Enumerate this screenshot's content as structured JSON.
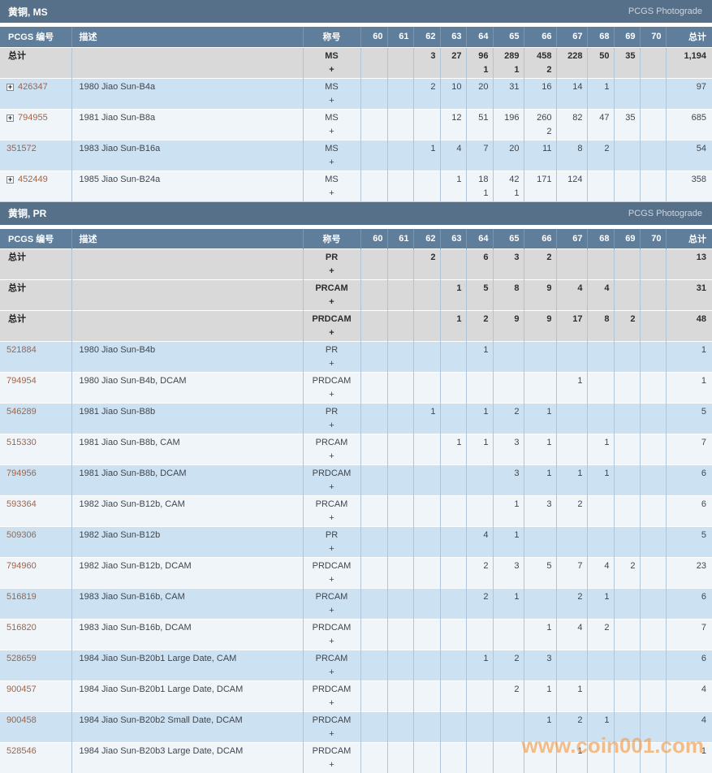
{
  "theme": {
    "section_header_bg": "#567089",
    "table_header_bg": "#5f7e9b",
    "row_blue_bg": "#cce1f2",
    "row_light_bg": "#f0f5f9",
    "row_total_bg": "#d9d9d9",
    "grid_line": "#b0c6d8",
    "link_color": "#a9613f",
    "text_color": "#40464c",
    "header_text": "#ffffff",
    "watermark_color": "rgba(244,154,66,0.62)"
  },
  "table_columns": {
    "pcgs_number": "PCGS 编号",
    "description": "描述",
    "designation": "称号",
    "grades": [
      "60",
      "61",
      "62",
      "63",
      "64",
      "65",
      "66",
      "67",
      "68",
      "69",
      "70"
    ],
    "total": "总计"
  },
  "plus_label": "+",
  "watermark": {
    "text": "www.coin001.com"
  },
  "sections": [
    {
      "title": "黄铜, MS",
      "photograde_label": "PCGS Photograde",
      "rows": [
        {
          "label": "总计",
          "is_total": true,
          "expand": false,
          "description": "",
          "designation": "MS",
          "counts": [
            "",
            "",
            "3",
            "27",
            "96",
            "289",
            "458",
            "228",
            "50",
            "35",
            ""
          ],
          "plus_counts": [
            "",
            "",
            "",
            "",
            "1",
            "1",
            "2",
            "",
            "",
            "",
            ""
          ],
          "total": "1,194",
          "plus_total": ""
        },
        {
          "label": "426347",
          "is_total": false,
          "expand": true,
          "description": "1980 Jiao Sun-B4a",
          "designation": "MS",
          "counts": [
            "",
            "",
            "2",
            "10",
            "20",
            "31",
            "16",
            "14",
            "1",
            "",
            ""
          ],
          "plus_counts": [
            "",
            "",
            "",
            "",
            "",
            "",
            "",
            "",
            "",
            "",
            ""
          ],
          "total": "97",
          "plus_total": ""
        },
        {
          "label": "794955",
          "is_total": false,
          "expand": true,
          "description": "1981 Jiao Sun-B8a",
          "designation": "MS",
          "counts": [
            "",
            "",
            "",
            "12",
            "51",
            "196",
            "260",
            "82",
            "47",
            "35",
            ""
          ],
          "plus_counts": [
            "",
            "",
            "",
            "",
            "",
            "",
            "2",
            "",
            "",
            "",
            ""
          ],
          "total": "685",
          "plus_total": ""
        },
        {
          "label": "351572",
          "is_total": false,
          "expand": false,
          "description": "1983 Jiao Sun-B16a",
          "designation": "MS",
          "counts": [
            "",
            "",
            "1",
            "4",
            "7",
            "20",
            "11",
            "8",
            "2",
            "",
            ""
          ],
          "plus_counts": [
            "",
            "",
            "",
            "",
            "",
            "",
            "",
            "",
            "",
            "",
            ""
          ],
          "total": "54",
          "plus_total": ""
        },
        {
          "label": "452449",
          "is_total": false,
          "expand": true,
          "description": "1985 Jiao Sun-B24a",
          "designation": "MS",
          "counts": [
            "",
            "",
            "",
            "1",
            "18",
            "42",
            "171",
            "124",
            "",
            "",
            ""
          ],
          "plus_counts": [
            "",
            "",
            "",
            "",
            "1",
            "1",
            "",
            "",
            "",
            "",
            ""
          ],
          "total": "358",
          "plus_total": ""
        }
      ]
    },
    {
      "title": "黄铜, PR",
      "photograde_label": "PCGS Photograde",
      "rows": [
        {
          "label": "总计",
          "is_total": true,
          "expand": false,
          "description": "",
          "designation": "PR",
          "counts": [
            "",
            "",
            "2",
            "",
            "6",
            "3",
            "2",
            "",
            "",
            "",
            ""
          ],
          "plus_counts": [
            "",
            "",
            "",
            "",
            "",
            "",
            "",
            "",
            "",
            "",
            ""
          ],
          "total": "13",
          "plus_total": ""
        },
        {
          "label": "总计",
          "is_total": true,
          "expand": false,
          "description": "",
          "designation": "PRCAM",
          "counts": [
            "",
            "",
            "",
            "1",
            "5",
            "8",
            "9",
            "4",
            "4",
            "",
            ""
          ],
          "plus_counts": [
            "",
            "",
            "",
            "",
            "",
            "",
            "",
            "",
            "",
            "",
            ""
          ],
          "total": "31",
          "plus_total": ""
        },
        {
          "label": "总计",
          "is_total": true,
          "expand": false,
          "description": "",
          "designation": "PRDCAM",
          "counts": [
            "",
            "",
            "",
            "1",
            "2",
            "9",
            "9",
            "17",
            "8",
            "2",
            ""
          ],
          "plus_counts": [
            "",
            "",
            "",
            "",
            "",
            "",
            "",
            "",
            "",
            "",
            ""
          ],
          "total": "48",
          "plus_total": ""
        },
        {
          "label": "521884",
          "is_total": false,
          "expand": false,
          "description": "1980 Jiao Sun-B4b",
          "designation": "PR",
          "counts": [
            "",
            "",
            "",
            "",
            "1",
            "",
            "",
            "",
            "",
            "",
            ""
          ],
          "plus_counts": [
            "",
            "",
            "",
            "",
            "",
            "",
            "",
            "",
            "",
            "",
            ""
          ],
          "total": "1",
          "plus_total": ""
        },
        {
          "label": "794954",
          "is_total": false,
          "expand": false,
          "description": "1980 Jiao Sun-B4b, DCAM",
          "designation": "PRDCAM",
          "counts": [
            "",
            "",
            "",
            "",
            "",
            "",
            "",
            "1",
            "",
            "",
            ""
          ],
          "plus_counts": [
            "",
            "",
            "",
            "",
            "",
            "",
            "",
            "",
            "",
            "",
            ""
          ],
          "total": "1",
          "plus_total": ""
        },
        {
          "label": "546289",
          "is_total": false,
          "expand": false,
          "description": "1981 Jiao Sun-B8b",
          "designation": "PR",
          "counts": [
            "",
            "",
            "1",
            "",
            "1",
            "2",
            "1",
            "",
            "",
            "",
            ""
          ],
          "plus_counts": [
            "",
            "",
            "",
            "",
            "",
            "",
            "",
            "",
            "",
            "",
            ""
          ],
          "total": "5",
          "plus_total": ""
        },
        {
          "label": "515330",
          "is_total": false,
          "expand": false,
          "description": "1981 Jiao Sun-B8b, CAM",
          "designation": "PRCAM",
          "counts": [
            "",
            "",
            "",
            "1",
            "1",
            "3",
            "1",
            "",
            "1",
            "",
            ""
          ],
          "plus_counts": [
            "",
            "",
            "",
            "",
            "",
            "",
            "",
            "",
            "",
            "",
            ""
          ],
          "total": "7",
          "plus_total": ""
        },
        {
          "label": "794956",
          "is_total": false,
          "expand": false,
          "description": "1981 Jiao Sun-B8b, DCAM",
          "designation": "PRDCAM",
          "counts": [
            "",
            "",
            "",
            "",
            "",
            "3",
            "1",
            "1",
            "1",
            "",
            ""
          ],
          "plus_counts": [
            "",
            "",
            "",
            "",
            "",
            "",
            "",
            "",
            "",
            "",
            ""
          ],
          "total": "6",
          "plus_total": ""
        },
        {
          "label": "593364",
          "is_total": false,
          "expand": false,
          "description": "1982 Jiao Sun-B12b, CAM",
          "designation": "PRCAM",
          "counts": [
            "",
            "",
            "",
            "",
            "",
            "1",
            "3",
            "2",
            "",
            "",
            ""
          ],
          "plus_counts": [
            "",
            "",
            "",
            "",
            "",
            "",
            "",
            "",
            "",
            "",
            ""
          ],
          "total": "6",
          "plus_total": ""
        },
        {
          "label": "509306",
          "is_total": false,
          "expand": false,
          "description": "1982 Jiao Sun-B12b",
          "designation": "PR",
          "counts": [
            "",
            "",
            "",
            "",
            "4",
            "1",
            "",
            "",
            "",
            "",
            ""
          ],
          "plus_counts": [
            "",
            "",
            "",
            "",
            "",
            "",
            "",
            "",
            "",
            "",
            ""
          ],
          "total": "5",
          "plus_total": ""
        },
        {
          "label": "794960",
          "is_total": false,
          "expand": false,
          "description": "1982 Jiao Sun-B12b, DCAM",
          "designation": "PRDCAM",
          "counts": [
            "",
            "",
            "",
            "",
            "2",
            "3",
            "5",
            "7",
            "4",
            "2",
            ""
          ],
          "plus_counts": [
            "",
            "",
            "",
            "",
            "",
            "",
            "",
            "",
            "",
            "",
            ""
          ],
          "total": "23",
          "plus_total": ""
        },
        {
          "label": "516819",
          "is_total": false,
          "expand": false,
          "description": "1983 Jiao Sun-B16b, CAM",
          "designation": "PRCAM",
          "counts": [
            "",
            "",
            "",
            "",
            "2",
            "1",
            "",
            "2",
            "1",
            "",
            ""
          ],
          "plus_counts": [
            "",
            "",
            "",
            "",
            "",
            "",
            "",
            "",
            "",
            "",
            ""
          ],
          "total": "6",
          "plus_total": ""
        },
        {
          "label": "516820",
          "is_total": false,
          "expand": false,
          "description": "1983 Jiao Sun-B16b, DCAM",
          "designation": "PRDCAM",
          "counts": [
            "",
            "",
            "",
            "",
            "",
            "",
            "1",
            "4",
            "2",
            "",
            ""
          ],
          "plus_counts": [
            "",
            "",
            "",
            "",
            "",
            "",
            "",
            "",
            "",
            "",
            ""
          ],
          "total": "7",
          "plus_total": ""
        },
        {
          "label": "528659",
          "is_total": false,
          "expand": false,
          "description": "1984 Jiao Sun-B20b1 Large Date, CAM",
          "designation": "PRCAM",
          "counts": [
            "",
            "",
            "",
            "",
            "1",
            "2",
            "3",
            "",
            "",
            "",
            ""
          ],
          "plus_counts": [
            "",
            "",
            "",
            "",
            "",
            "",
            "",
            "",
            "",
            "",
            ""
          ],
          "total": "6",
          "plus_total": ""
        },
        {
          "label": "900457",
          "is_total": false,
          "expand": false,
          "description": "1984 Jiao Sun-B20b1 Large Date, DCAM",
          "designation": "PRDCAM",
          "counts": [
            "",
            "",
            "",
            "",
            "",
            "2",
            "1",
            "1",
            "",
            "",
            ""
          ],
          "plus_counts": [
            "",
            "",
            "",
            "",
            "",
            "",
            "",
            "",
            "",
            "",
            ""
          ],
          "total": "4",
          "plus_total": ""
        },
        {
          "label": "900458",
          "is_total": false,
          "expand": false,
          "description": "1984 Jiao Sun-B20b2 Small Date, DCAM",
          "designation": "PRDCAM",
          "counts": [
            "",
            "",
            "",
            "",
            "",
            "",
            "1",
            "2",
            "1",
            "",
            ""
          ],
          "plus_counts": [
            "",
            "",
            "",
            "",
            "",
            "",
            "",
            "",
            "",
            "",
            ""
          ],
          "total": "4",
          "plus_total": ""
        },
        {
          "label": "528546",
          "is_total": false,
          "expand": false,
          "description": "1984 Jiao Sun-B20b3 Large Date, DCAM",
          "designation": "PRDCAM",
          "counts": [
            "",
            "",
            "",
            "",
            "",
            "",
            "",
            "1",
            "",
            "",
            ""
          ],
          "plus_counts": [
            "",
            "",
            "",
            "",
            "",
            "",
            "",
            "",
            "",
            "",
            ""
          ],
          "total": "1",
          "plus_total": ""
        }
      ]
    }
  ]
}
